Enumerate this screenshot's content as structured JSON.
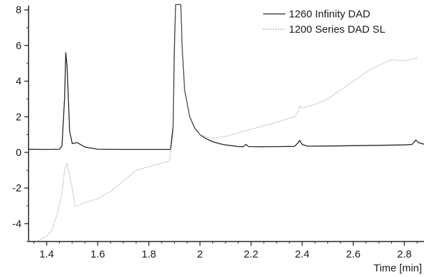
{
  "chart_data": {
    "type": "line",
    "title": "",
    "xlabel": "Time [min]",
    "ylabel": "",
    "xlim": [
      1.32,
      2.88
    ],
    "ylim": [
      -5.1,
      8.3
    ],
    "grid": false,
    "legend_position": "top-right",
    "x_ticks": [
      {
        "value": 1.4,
        "label": "1.4"
      },
      {
        "value": 1.6,
        "label": "1.6"
      },
      {
        "value": 1.8,
        "label": "1.8"
      },
      {
        "value": 2.0,
        "label": "2"
      },
      {
        "value": 2.2,
        "label": "2.2"
      },
      {
        "value": 2.4,
        "label": "2.4"
      },
      {
        "value": 2.6,
        "label": "2.6"
      },
      {
        "value": 2.8,
        "label": "2.8"
      }
    ],
    "y_ticks": [
      {
        "value": 8,
        "label": "8"
      },
      {
        "value": 6,
        "label": "6"
      },
      {
        "value": 4,
        "label": "4"
      },
      {
        "value": 2,
        "label": "2"
      },
      {
        "value": 0,
        "label": "0"
      },
      {
        "value": -2,
        "label": "-2"
      },
      {
        "value": -4,
        "label": "-4"
      }
    ],
    "series": [
      {
        "name": "1260 Infinity DAD",
        "color": "#222222",
        "style": "solid",
        "points": [
          [
            1.32,
            0.18
          ],
          [
            1.4,
            0.17
          ],
          [
            1.45,
            0.18
          ],
          [
            1.46,
            0.35
          ],
          [
            1.47,
            3.0
          ],
          [
            1.475,
            5.6
          ],
          [
            1.48,
            4.8
          ],
          [
            1.49,
            1.2
          ],
          [
            1.5,
            0.5
          ],
          [
            1.52,
            0.55
          ],
          [
            1.55,
            0.3
          ],
          [
            1.6,
            0.18
          ],
          [
            1.7,
            0.17
          ],
          [
            1.8,
            0.17
          ],
          [
            1.885,
            0.17
          ],
          [
            1.895,
            1.5
          ],
          [
            1.9,
            6.0
          ],
          [
            1.905,
            8.3
          ],
          [
            1.925,
            8.3
          ],
          [
            1.93,
            6.0
          ],
          [
            1.94,
            3.5
          ],
          [
            1.96,
            2.0
          ],
          [
            1.98,
            1.35
          ],
          [
            2.0,
            1.0
          ],
          [
            2.02,
            0.8
          ],
          [
            2.05,
            0.6
          ],
          [
            2.08,
            0.48
          ],
          [
            2.1,
            0.42
          ],
          [
            2.15,
            0.33
          ],
          [
            2.17,
            0.32
          ],
          [
            2.18,
            0.45
          ],
          [
            2.19,
            0.33
          ],
          [
            2.25,
            0.32
          ],
          [
            2.3,
            0.33
          ],
          [
            2.37,
            0.34
          ],
          [
            2.385,
            0.55
          ],
          [
            2.39,
            0.68
          ],
          [
            2.4,
            0.45
          ],
          [
            2.42,
            0.35
          ],
          [
            2.5,
            0.36
          ],
          [
            2.6,
            0.38
          ],
          [
            2.7,
            0.4
          ],
          [
            2.8,
            0.42
          ],
          [
            2.83,
            0.45
          ],
          [
            2.845,
            0.7
          ],
          [
            2.855,
            0.55
          ],
          [
            2.88,
            0.45
          ]
        ]
      },
      {
        "name": "1200 Series DAD SL",
        "color": "#9a9a9a",
        "style": "dotted",
        "points": [
          [
            1.33,
            -5.2
          ],
          [
            1.36,
            -5.0
          ],
          [
            1.4,
            -4.7
          ],
          [
            1.42,
            -4.4
          ],
          [
            1.44,
            -3.5
          ],
          [
            1.46,
            -2.3
          ],
          [
            1.47,
            -1.0
          ],
          [
            1.48,
            -0.6
          ],
          [
            1.49,
            -1.3
          ],
          [
            1.5,
            -2.0
          ],
          [
            1.51,
            -3.0
          ],
          [
            1.52,
            -3.0
          ],
          [
            1.55,
            -2.8
          ],
          [
            1.6,
            -2.6
          ],
          [
            1.65,
            -2.2
          ],
          [
            1.7,
            -1.6
          ],
          [
            1.75,
            -1.0
          ],
          [
            1.8,
            -0.8
          ],
          [
            1.85,
            -0.6
          ],
          [
            1.88,
            -0.5
          ],
          [
            1.895,
            1.0
          ],
          [
            1.9,
            5.0
          ],
          [
            1.905,
            8.3
          ],
          [
            1.925,
            8.3
          ],
          [
            1.93,
            6.0
          ],
          [
            1.94,
            3.5
          ],
          [
            1.96,
            2.0
          ],
          [
            1.98,
            1.3
          ],
          [
            2.0,
            1.0
          ],
          [
            2.03,
            0.85
          ],
          [
            2.06,
            0.8
          ],
          [
            2.1,
            0.9
          ],
          [
            2.15,
            1.1
          ],
          [
            2.2,
            1.3
          ],
          [
            2.3,
            1.7
          ],
          [
            2.37,
            2.0
          ],
          [
            2.385,
            2.3
          ],
          [
            2.39,
            2.6
          ],
          [
            2.4,
            2.5
          ],
          [
            2.45,
            2.7
          ],
          [
            2.5,
            3.0
          ],
          [
            2.55,
            3.5
          ],
          [
            2.6,
            4.0
          ],
          [
            2.65,
            4.5
          ],
          [
            2.7,
            4.9
          ],
          [
            2.75,
            5.2
          ],
          [
            2.8,
            5.15
          ],
          [
            2.85,
            5.3
          ]
        ]
      }
    ]
  }
}
